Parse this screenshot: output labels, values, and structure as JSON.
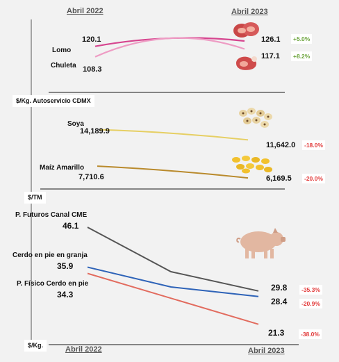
{
  "dates": {
    "top_left": "Abril 2022",
    "top_right": "Abril 2023",
    "bottom_left": "Abril 2022",
    "bottom_right": "Abril 2023"
  },
  "unit_labels": {
    "retail": "$/Kg. Autoservicio CDMX",
    "grain": "$/TM",
    "pork": "$/Kg."
  },
  "colors": {
    "lomo": "#d6458f",
    "chuleta": "#ee9cc4",
    "soya": "#e6cf63",
    "maiz": "#b98a2c",
    "futuros": "#555555",
    "granja": "#2e63b8",
    "fisico": "#e26b5e",
    "increase": "#6aa33a",
    "decrease": "#e23b3b"
  },
  "icons": {
    "lomo": "meat-steak-icon",
    "chuleta": "pork-chop-icon",
    "soya": "soybeans-icon",
    "maiz": "corn-kernels-icon",
    "pork": "pig-icon"
  },
  "chart_data": [
    {
      "type": "line",
      "unit": "$/Kg. Autoservicio CDMX",
      "x": [
        "Abril 2022",
        "Abril 2023"
      ],
      "series": [
        {
          "name": "Lomo",
          "values": [
            120.1,
            126.1
          ],
          "start_label": "120.1",
          "end_label": "126.1",
          "change": "+5.0%"
        },
        {
          "name": "Chuleta",
          "values": [
            108.3,
            117.1
          ],
          "start_label": "108.3",
          "end_label": "117.1",
          "change": "+8.2%"
        }
      ]
    },
    {
      "type": "line",
      "unit": "$/TM",
      "x": [
        "Abril 2022",
        "Abril 2023"
      ],
      "series": [
        {
          "name": "Soya",
          "values": [
            14189.9,
            11642.0
          ],
          "start_label": "14,189.9",
          "end_label": "11,642.0",
          "change": "-18.0%"
        },
        {
          "name": "Maíz Amarillo",
          "values": [
            7710.6,
            6169.5
          ],
          "start_label": "7,710.6",
          "end_label": "6,169.5",
          "change": "-20.0%"
        }
      ]
    },
    {
      "type": "line",
      "unit": "$/Kg.",
      "x": [
        "Abril 2022",
        "Abril 2023"
      ],
      "series": [
        {
          "name": "P. Futuros Canal CME",
          "values": [
            46.1,
            29.8
          ],
          "start_label": "46.1",
          "end_label": "29.8",
          "change": "-35.3%"
        },
        {
          "name": "Cerdo en pie en granja",
          "values": [
            35.9,
            28.4
          ],
          "start_label": "35.9",
          "end_label": "28.4",
          "change": "-20.9%"
        },
        {
          "name": "P. Físico Cerdo en pie",
          "values": [
            34.3,
            21.3
          ],
          "start_label": "34.3",
          "end_label": "21.3",
          "change": "-38.0%"
        }
      ]
    }
  ]
}
